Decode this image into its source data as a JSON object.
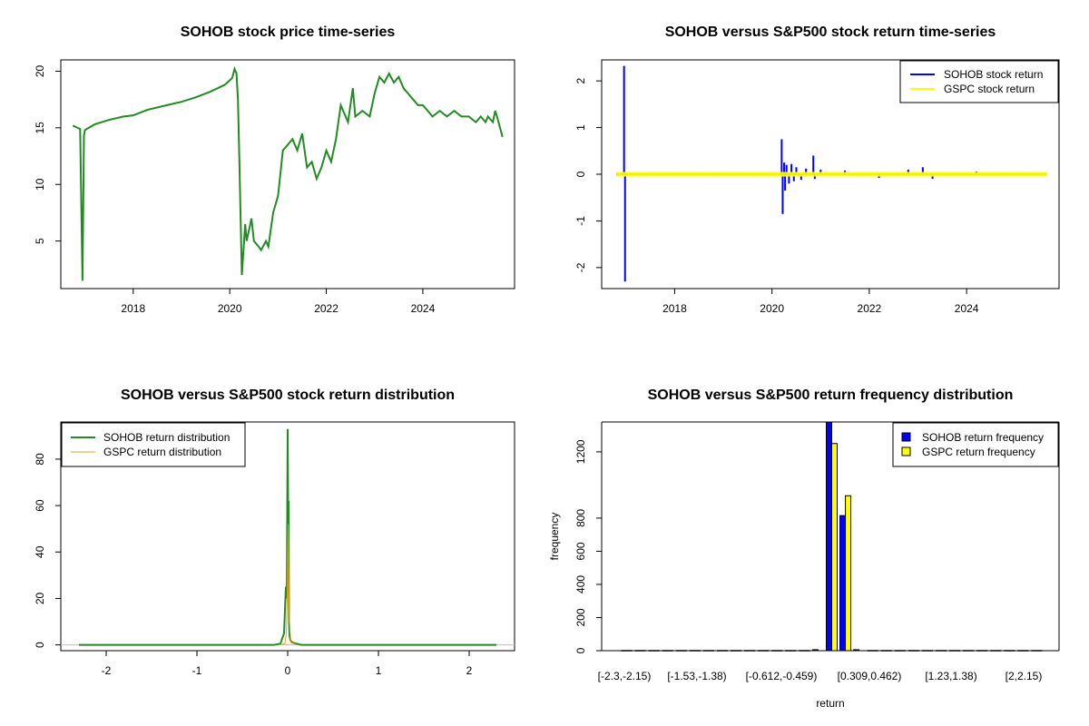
{
  "chart_data": [
    {
      "type": "line",
      "title": "SOHOB stock price time-series",
      "xlabel": "",
      "ylabel": "",
      "xlim": [
        2016.5,
        2025.9
      ],
      "ylim": [
        0.8,
        21.0
      ],
      "x_ticks": [
        "2018",
        "2020",
        "2022",
        "2024"
      ],
      "y_ticks": [
        "5",
        "10",
        "15",
        "20"
      ],
      "series": [
        {
          "color": "#228B22",
          "x": [
            2016.75,
            2016.85,
            2016.9,
            2016.95,
            2016.98,
            2017.0,
            2017.2,
            2017.5,
            2017.8,
            2018.0,
            2018.3,
            2018.6,
            2018.9,
            2019.0,
            2019.3,
            2019.6,
            2019.9,
            2020.05,
            2020.1,
            2020.14,
            2020.17,
            2020.2,
            2020.25,
            2020.32,
            2020.35,
            2020.45,
            2020.5,
            2020.6,
            2020.65,
            2020.75,
            2020.8,
            2020.9,
            2021.0,
            2021.1,
            2021.2,
            2021.3,
            2021.4,
            2021.5,
            2021.6,
            2021.7,
            2021.8,
            2021.9,
            2022.0,
            2022.1,
            2022.2,
            2022.3,
            2022.45,
            2022.55,
            2022.6,
            2022.75,
            2022.9,
            2023.0,
            2023.1,
            2023.2,
            2023.3,
            2023.4,
            2023.5,
            2023.6,
            2023.7,
            2023.8,
            2023.9,
            2024.0,
            2024.1,
            2024.2,
            2024.35,
            2024.5,
            2024.65,
            2024.8,
            2024.95,
            2025.1,
            2025.2,
            2025.3,
            2025.35,
            2025.45,
            2025.5,
            2025.55,
            2025.6,
            2025.65
          ],
          "y": [
            15.2,
            15.0,
            14.9,
            1.5,
            14.3,
            14.8,
            15.3,
            15.7,
            16.0,
            16.1,
            16.6,
            16.9,
            17.2,
            17.3,
            17.7,
            18.2,
            18.8,
            19.4,
            20.2,
            19.8,
            17.5,
            12.0,
            2.0,
            6.5,
            5.0,
            7.0,
            5.0,
            4.5,
            4.2,
            5.0,
            4.5,
            7.5,
            9.0,
            13.0,
            13.5,
            14.0,
            13.0,
            14.5,
            11.5,
            12.0,
            10.5,
            11.5,
            13.0,
            12.0,
            14.0,
            17.0,
            15.5,
            18.5,
            16.0,
            16.5,
            16.0,
            18.0,
            19.5,
            19.0,
            19.8,
            19.0,
            19.5,
            18.5,
            18.0,
            17.5,
            17.0,
            17.0,
            16.5,
            16.0,
            16.5,
            16.0,
            16.5,
            16.0,
            16.0,
            15.5,
            16.0,
            15.5,
            16.0,
            15.5,
            16.5,
            15.8,
            15.0,
            14.2
          ]
        }
      ]
    },
    {
      "type": "line",
      "title": "SOHOB versus S&P500 stock return time-series",
      "xlabel": "",
      "ylabel": "",
      "xlim": [
        2016.5,
        2025.9
      ],
      "ylim": [
        -2.45,
        2.45
      ],
      "x_ticks": [
        "2018",
        "2020",
        "2022",
        "2024"
      ],
      "y_ticks": [
        "-2",
        "-1",
        "0",
        "1",
        "2"
      ],
      "legend_position": "top-right",
      "series": [
        {
          "name": "SOHOB stock return",
          "color": "#0000FF",
          "spikes": [
            {
              "x": 2016.96,
              "y": 2.32
            },
            {
              "x": 2016.98,
              "y": -2.3
            },
            {
              "x": 2020.2,
              "y": 0.75
            },
            {
              "x": 2020.22,
              "y": -0.85
            },
            {
              "x": 2020.25,
              "y": 0.25
            },
            {
              "x": 2020.27,
              "y": -0.35
            },
            {
              "x": 2020.3,
              "y": 0.2
            },
            {
              "x": 2020.35,
              "y": -0.2
            },
            {
              "x": 2020.4,
              "y": 0.22
            },
            {
              "x": 2020.45,
              "y": -0.15
            },
            {
              "x": 2020.5,
              "y": 0.15
            },
            {
              "x": 2020.6,
              "y": -0.12
            },
            {
              "x": 2020.7,
              "y": 0.12
            },
            {
              "x": 2020.85,
              "y": 0.4
            },
            {
              "x": 2020.88,
              "y": -0.1
            },
            {
              "x": 2021.0,
              "y": 0.1
            },
            {
              "x": 2021.5,
              "y": 0.08
            },
            {
              "x": 2022.2,
              "y": -0.08
            },
            {
              "x": 2022.8,
              "y": 0.1
            },
            {
              "x": 2023.1,
              "y": 0.15
            },
            {
              "x": 2023.3,
              "y": -0.1
            },
            {
              "x": 2024.2,
              "y": 0.06
            }
          ]
        },
        {
          "name": "GSPC stock return",
          "color": "#FFFF00",
          "band": 0.05
        }
      ]
    },
    {
      "type": "line",
      "title": "SOHOB versus S&P500 stock return distribution",
      "xlabel": "",
      "ylabel": "",
      "xlim": [
        -2.5,
        2.5
      ],
      "ylim": [
        -2.5,
        96
      ],
      "x_ticks": [
        "-2",
        "-1",
        "0",
        "1",
        "2"
      ],
      "y_ticks": [
        "0",
        "20",
        "40",
        "60",
        "80"
      ],
      "legend_position": "top-left",
      "series": [
        {
          "name": "SOHOB return distribution",
          "color": "#228B22",
          "x": [
            -2.3,
            -0.15,
            -0.08,
            -0.04,
            -0.02,
            -0.01,
            0.0,
            0.005,
            0.01,
            0.015,
            0.02,
            0.03,
            0.05,
            0.1,
            0.15,
            2.3
          ],
          "y": [
            0,
            0,
            0.5,
            5,
            25,
            20,
            93,
            55,
            62,
            10,
            4,
            2,
            1,
            0.5,
            0,
            0
          ]
        },
        {
          "name": "GSPC return distribution",
          "color": "#DAA520",
          "x": [
            -0.1,
            -0.03,
            -0.015,
            -0.005,
            0.0,
            0.005,
            0.01,
            0.02,
            0.035,
            0.1
          ],
          "y": [
            0,
            0.5,
            5,
            20,
            40,
            52,
            35,
            10,
            1,
            0
          ]
        }
      ]
    },
    {
      "type": "bar",
      "title": "SOHOB versus S&P500 return frequency distribution",
      "xlabel": "return",
      "ylabel": "frequency",
      "ylim": [
        0,
        1380
      ],
      "y_ticks": [
        "0",
        "200",
        "400",
        "600",
        "800",
        "1200"
      ],
      "categories": [
        "[-2.3,-2.15)",
        "[-1.53,-1.38)",
        "[-0.612,-0.459)",
        "[0.309,0.462)",
        "[1.23,1.38)",
        "[2,2.15)"
      ],
      "legend_position": "top-right",
      "series": [
        {
          "name": "SOHOB return frequency",
          "color": "#0000FF",
          "bins": [
            {
              "bin": 15,
              "value": 1380
            },
            {
              "bin": 16,
              "value": 815
            },
            {
              "bin": 14,
              "value": 6
            },
            {
              "bin": 17,
              "value": 6
            }
          ]
        },
        {
          "name": "GSPC return frequency",
          "color": "#FFFF00",
          "bins": [
            {
              "bin": 15,
              "value": 1250
            },
            {
              "bin": 16,
              "value": 935
            }
          ]
        }
      ]
    }
  ]
}
